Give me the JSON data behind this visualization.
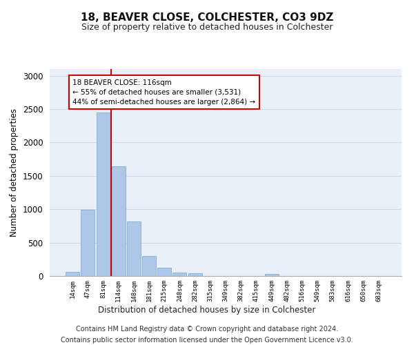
{
  "title": "18, BEAVER CLOSE, COLCHESTER, CO3 9DZ",
  "subtitle": "Size of property relative to detached houses in Colchester",
  "xlabel": "Distribution of detached houses by size in Colchester",
  "ylabel": "Number of detached properties",
  "bar_labels": [
    "14sqm",
    "47sqm",
    "81sqm",
    "114sqm",
    "148sqm",
    "181sqm",
    "215sqm",
    "248sqm",
    "282sqm",
    "315sqm",
    "349sqm",
    "382sqm",
    "415sqm",
    "449sqm",
    "482sqm",
    "516sqm",
    "549sqm",
    "583sqm",
    "616sqm",
    "650sqm",
    "683sqm"
  ],
  "bar_values": [
    60,
    990,
    2450,
    1640,
    820,
    300,
    120,
    50,
    45,
    0,
    0,
    0,
    0,
    30,
    0,
    0,
    0,
    0,
    0,
    0,
    0
  ],
  "bar_color": "#aec6e8",
  "bar_edgecolor": "#6aaad4",
  "grid_color": "#d0d8e8",
  "background_color": "#eaf0f8",
  "property_line_label": "18 BEAVER CLOSE: 116sqm",
  "annotation_line1": "← 55% of detached houses are smaller (3,531)",
  "annotation_line2": "44% of semi-detached houses are larger (2,864) →",
  "annotation_box_color": "#cc0000",
  "ylim": [
    0,
    3100
  ],
  "yticks": [
    0,
    500,
    1000,
    1500,
    2000,
    2500,
    3000
  ],
  "footer1": "Contains HM Land Registry data © Crown copyright and database right 2024.",
  "footer2": "Contains public sector information licensed under the Open Government Licence v3.0."
}
